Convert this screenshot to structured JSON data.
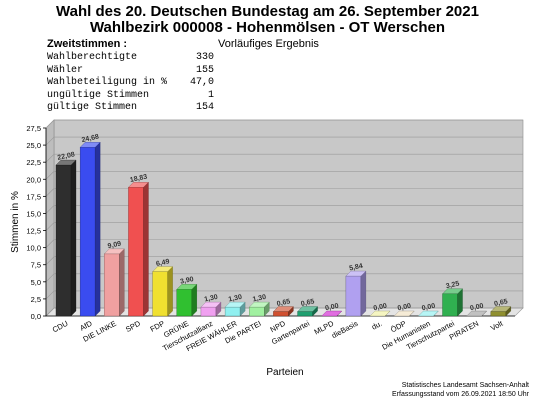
{
  "header": {
    "title_line1": "Wahl des 20. Deutschen Bundestag am 26. September 2021",
    "title_line2": "Wahlbezirk 000008 - Hohenmölsen - OT Werschen",
    "zweitstimmen_label": "Zweitstimmen :",
    "status": "Vorläufiges Ergebnis"
  },
  "stats": [
    {
      "label": "Wahlberechtigte",
      "value": "330"
    },
    {
      "label": "Wähler",
      "value": "155"
    },
    {
      "label": "Wahlbeteiligung in %",
      "value": "47,0"
    },
    {
      "label": "ungültige Stimmen",
      "value": "1"
    },
    {
      "label": "gültige Stimmen",
      "value": "154"
    }
  ],
  "chart_data": {
    "type": "bar",
    "title": "",
    "xlabel": "Parteien",
    "ylabel": "Stimmen in %",
    "ylim": [
      0,
      27.5
    ],
    "yticks": [
      "0,0",
      "2,5",
      "5,0",
      "7,5",
      "10,0",
      "12,5",
      "15,0",
      "17,5",
      "20,0",
      "22,5",
      "25,0",
      "27,5"
    ],
    "grid": true,
    "categories": [
      "CDU",
      "AfD",
      "DIE LINKE",
      "SPD",
      "FDP",
      "GRÜNE",
      "Tierschutzallianz",
      "FREIE WÄHLER",
      "Die PARTEI",
      "NPD",
      "Gartenpartei",
      "MLPD",
      "dieBasis",
      "du.",
      "ÖDP",
      "Die Humanisten",
      "Tierschutzpartei",
      "PIRATEN",
      "Volt"
    ],
    "values": [
      22.08,
      24.68,
      9.09,
      18.83,
      6.49,
      3.9,
      1.3,
      1.3,
      1.3,
      0.65,
      0.65,
      0.0,
      5.84,
      0.0,
      0.0,
      0.0,
      3.25,
      0.0,
      0.65
    ],
    "value_labels": [
      "22,08",
      "24,68",
      "9,09",
      "18,83",
      "6,49",
      "3,90",
      "1,30",
      "1,30",
      "1,30",
      "0,65",
      "0,65",
      "0,00",
      "5,84",
      "0,00",
      "0,00",
      "0,00",
      "3,25",
      "0,00",
      "0,65"
    ],
    "colors": [
      "#2e2e2e",
      "#3a4cf0",
      "#f0a0a0",
      "#f05050",
      "#f0e030",
      "#30c030",
      "#f0a0f0",
      "#90f0f0",
      "#a0f0a0",
      "#d05030",
      "#20a070",
      "#d020d0",
      "#b0a0f0",
      "#f0f0a0",
      "#f0e0c0",
      "#90f0f0",
      "#30b050",
      "#a0a0a0",
      "#909030"
    ]
  },
  "footer": {
    "line1": "Statistisches Landesamt Sachsen-Anhalt",
    "line2": "Erfassungsstand vom 26.09.2021 18:50 Uhr"
  }
}
